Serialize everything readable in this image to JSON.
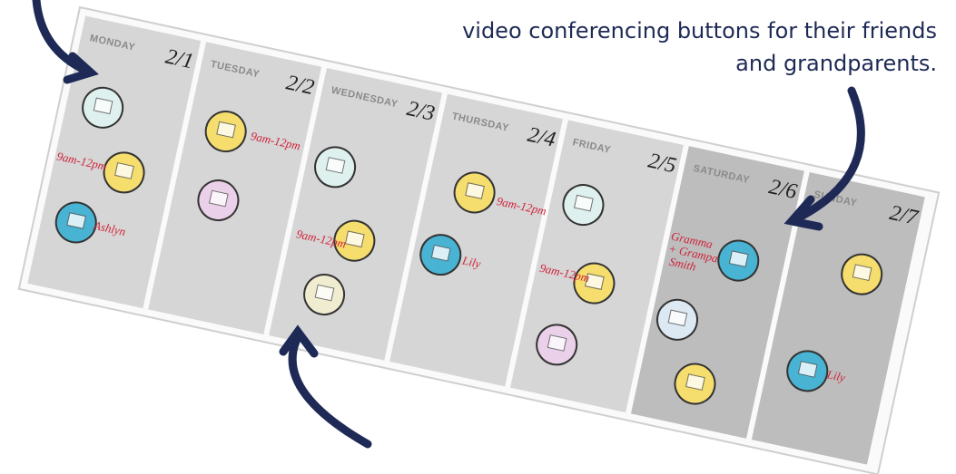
{
  "annotation": {
    "lines": [
      "video conferencing buttons for their friends",
      "and grandparents."
    ]
  },
  "days": [
    {
      "name": "MONDAY",
      "date": "2/1",
      "notes": [
        "9am-12pm",
        "Ashlyn"
      ]
    },
    {
      "name": "TUESDAY",
      "date": "2/2",
      "notes": [
        "9am-12pm"
      ]
    },
    {
      "name": "WEDNESDAY",
      "date": "2/3",
      "notes": [
        "9am-12pm"
      ]
    },
    {
      "name": "THURSDAY",
      "date": "2/4",
      "notes": [
        "9am-12pm",
        "Lily"
      ]
    },
    {
      "name": "FRIDAY",
      "date": "2/5",
      "notes": [
        "9am-12pm"
      ]
    },
    {
      "name": "SATURDAY",
      "date": "2/6",
      "notes": [
        "Gramma",
        "+ Grampa",
        "Smith"
      ]
    },
    {
      "name": "SUNDAY",
      "date": "2/7",
      "notes": [
        "Lily"
      ]
    }
  ]
}
